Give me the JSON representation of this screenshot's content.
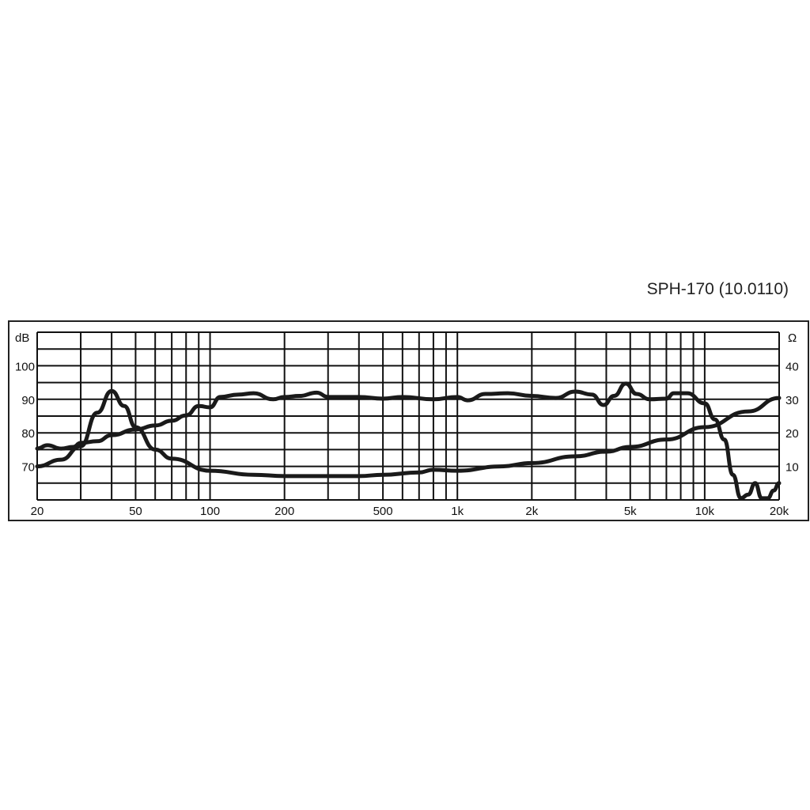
{
  "chart_data": {
    "type": "line",
    "title": "SPH-170 (10.0110)",
    "xscale": "log",
    "xlim": [
      20,
      20000
    ],
    "ylabel_left": "dB",
    "ylabel_right": "Ω",
    "ylim_left": [
      60,
      110
    ],
    "ylim_right": [
      0,
      50
    ],
    "grid": true,
    "x_ticks": [
      {
        "v": 20,
        "label": "20"
      },
      {
        "v": 50,
        "label": "50"
      },
      {
        "v": 100,
        "label": "100"
      },
      {
        "v": 200,
        "label": "200"
      },
      {
        "v": 500,
        "label": "500"
      },
      {
        "v": 1000,
        "label": "1k"
      },
      {
        "v": 2000,
        "label": "2k"
      },
      {
        "v": 5000,
        "label": "5k"
      },
      {
        "v": 10000,
        "label": "10k"
      },
      {
        "v": 20000,
        "label": "20k"
      }
    ],
    "y_ticks_left": [
      {
        "v": 70,
        "label": "70"
      },
      {
        "v": 80,
        "label": "80"
      },
      {
        "v": 90,
        "label": "90"
      },
      {
        "v": 100,
        "label": "100"
      }
    ],
    "y_ticks_right": [
      {
        "v": 10,
        "label": "10"
      },
      {
        "v": 20,
        "label": "20"
      },
      {
        "v": 30,
        "label": "30"
      },
      {
        "v": 40,
        "label": "40"
      }
    ],
    "series": [
      {
        "axis": "left",
        "color": "#1a1a1a",
        "x": [
          20,
          22,
          25,
          28,
          30,
          35,
          40,
          50,
          60,
          70,
          80,
          90,
          100,
          110,
          130,
          150,
          180,
          200,
          230,
          270,
          300,
          400,
          500,
          600,
          800,
          1000,
          1100,
          1300,
          1600,
          2000,
          2500,
          3000,
          3500,
          3900,
          4300,
          4800,
          5300,
          6000,
          7000,
          7500,
          8500,
          10000,
          11000,
          12000,
          13000,
          14000,
          15000,
          16000,
          17000,
          18000,
          19000,
          20000
        ],
        "values": [
          75.3,
          76.3,
          75.3,
          75.8,
          77,
          77.5,
          79.3,
          81,
          82.2,
          83.6,
          85.2,
          88,
          87.6,
          90.7,
          91.4,
          91.8,
          90,
          90.7,
          91,
          92,
          90.7,
          90.7,
          90.2,
          90.7,
          90,
          90.7,
          89.7,
          91.6,
          91.8,
          91,
          90.4,
          92.3,
          91.4,
          88.3,
          91,
          94.7,
          91.6,
          90,
          90.2,
          91.8,
          91.8,
          88.8,
          84,
          78,
          67.5,
          60.5,
          61.6,
          65,
          60.5,
          60.5,
          62.8,
          65
        ]
      },
      {
        "axis": "right",
        "color": "#1a1a1a",
        "x": [
          20,
          25,
          30,
          35,
          40,
          45,
          50,
          60,
          70,
          100,
          150,
          200,
          300,
          400,
          500,
          700,
          800,
          1000,
          1500,
          2000,
          3000,
          4000,
          5000,
          7000,
          10000,
          15000,
          20000
        ],
        "values": [
          10,
          12,
          16,
          26,
          32.5,
          28,
          21.7,
          15,
          12.3,
          8.7,
          7.5,
          7.1,
          7.1,
          7.1,
          7.5,
          8.2,
          9,
          8.7,
          10,
          11,
          13,
          14.4,
          15.8,
          18,
          21.7,
          26.4,
          30.4
        ]
      }
    ]
  }
}
